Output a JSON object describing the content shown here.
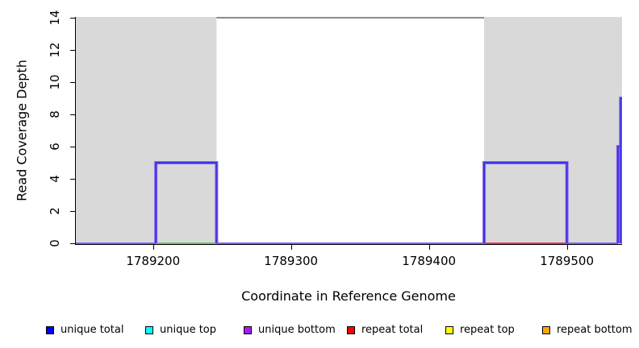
{
  "chart_data": {
    "type": "line",
    "title": "",
    "xlabel": "Coordinate in Reference Genome",
    "ylabel": "Read Coverage Depth",
    "xlim": [
      1789144,
      1789540
    ],
    "ylim": [
      0,
      14
    ],
    "x_ticks": [
      {
        "value": 1789200,
        "label": "1789200"
      },
      {
        "value": 1789300,
        "label": "1789300"
      },
      {
        "value": 1789400,
        "label": "1789400"
      },
      {
        "value": 1789500,
        "label": "1789500"
      }
    ],
    "y_ticks": [
      {
        "value": 0,
        "label": "0"
      },
      {
        "value": 2,
        "label": "2"
      },
      {
        "value": 4,
        "label": "4"
      },
      {
        "value": 6,
        "label": "6"
      },
      {
        "value": 8,
        "label": "8"
      },
      {
        "value": 10,
        "label": "10"
      },
      {
        "value": 12,
        "label": "12"
      },
      {
        "value": 14,
        "label": "14"
      }
    ],
    "shaded_regions": [
      {
        "x1": 1789144,
        "x2": 1789246,
        "color": "#D9D9D9"
      },
      {
        "x1": 1789440,
        "x2": 1789540,
        "color": "#D9D9D9"
      }
    ],
    "clipped_top_segment": {
      "x1": 1789246,
      "x2": 1789440,
      "y": 14,
      "color": "#8C8C8C"
    },
    "rendered_overlays": [
      {
        "desc": "zero-coverage baseline (blended series)",
        "color": "#7B68EE",
        "y": 0,
        "x1": 1789144,
        "x2": 1789537
      },
      {
        "desc": "green blend at zero under left step",
        "color": "#6FC46F",
        "y": 0,
        "x1": 1789202,
        "x2": 1789246
      },
      {
        "desc": "red blend at zero under right step",
        "color": "#E03C5C",
        "y": 0,
        "x1": 1789440,
        "x2": 1789500
      },
      {
        "desc": "green blend at right edge",
        "color": "#6FC46F",
        "y": 0,
        "x1": 1789539,
        "x2": 1789540
      }
    ],
    "drawn_steps": [
      {
        "x1": 1789202,
        "x2": 1789246,
        "y": 5,
        "borders": "ltr"
      },
      {
        "x1": 1789440,
        "x2": 1789500,
        "y": 5,
        "borders": "ltr"
      },
      {
        "x1": 1789537,
        "x2": 1789540,
        "y": 6,
        "borders": "lt"
      },
      {
        "x1": 1789539,
        "x2": 1789540,
        "y": 9,
        "borders": "lt"
      }
    ],
    "step_color": "#3A35E6",
    "step_halo_color": "#9060F0",
    "series": [
      {
        "name": "unique total",
        "color": "#0000FF",
        "points": [
          [
            1789144,
            0
          ],
          [
            1789202,
            0
          ],
          [
            1789202,
            5
          ],
          [
            1789246,
            5
          ],
          [
            1789246,
            0
          ],
          [
            1789440,
            0
          ],
          [
            1789440,
            5
          ],
          [
            1789500,
            5
          ],
          [
            1789500,
            0
          ],
          [
            1789537,
            0
          ],
          [
            1789537,
            6
          ],
          [
            1789539,
            6
          ],
          [
            1789539,
            9
          ],
          [
            1789540,
            9
          ]
        ]
      },
      {
        "name": "unique top",
        "color": "#00FFFF",
        "points": [
          [
            1789144,
            0
          ],
          [
            1789540,
            0
          ]
        ]
      },
      {
        "name": "unique bottom",
        "color": "#A020F0",
        "points": [
          [
            1789144,
            0
          ],
          [
            1789540,
            0
          ]
        ]
      },
      {
        "name": "repeat total",
        "color": "#FF0000",
        "points": [
          [
            1789144,
            0
          ],
          [
            1789540,
            0
          ]
        ]
      },
      {
        "name": "repeat top",
        "color": "#FFFF00",
        "points": [
          [
            1789144,
            0
          ],
          [
            1789540,
            0
          ]
        ]
      },
      {
        "name": "repeat bottom",
        "color": "#FFA500",
        "points": [
          [
            1789144,
            0
          ],
          [
            1789540,
            0
          ]
        ]
      }
    ]
  },
  "legend": {
    "items": [
      {
        "label": "unique total",
        "color": "#0000FF"
      },
      {
        "label": "unique top",
        "color": "#00FFFF"
      },
      {
        "label": "unique bottom",
        "color": "#A020F0"
      },
      {
        "label": "repeat total",
        "color": "#FF0000"
      },
      {
        "label": "repeat top",
        "color": "#FFFF00"
      },
      {
        "label": "repeat bottom",
        "color": "#FFA500"
      }
    ]
  }
}
